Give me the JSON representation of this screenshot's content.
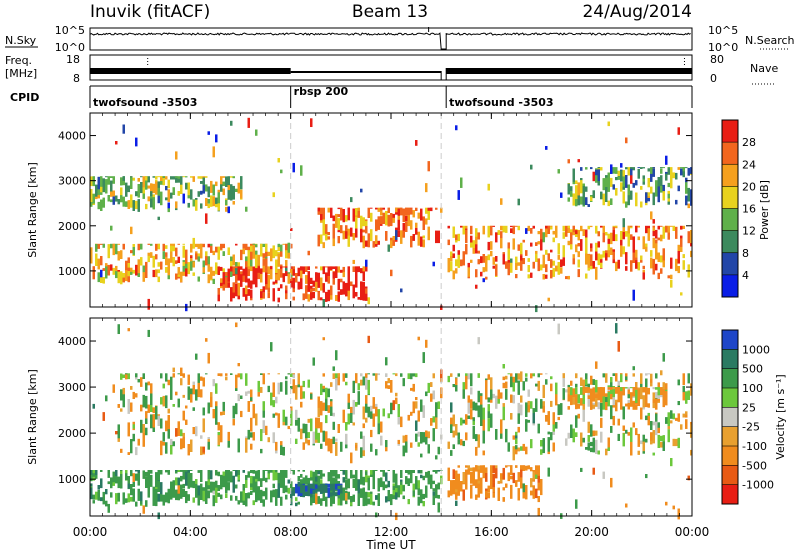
{
  "header": {
    "station": "Inuvik (fitACF)",
    "beam": "Beam 13",
    "date": "24/Aug/2014"
  },
  "summary_panels": {
    "nsky_label": "N.Sky",
    "nsky_ticks": [
      "10^5",
      "10^0"
    ],
    "nsearch_label": "N.Search",
    "nsearch_ticks": [
      "10^5",
      "10^0"
    ],
    "freq_label": "Freq.",
    "freq_unit": "[MHz]",
    "freq_ticks": [
      "18",
      "8"
    ],
    "nave_label": "Nave",
    "nave_ticks": [
      "80",
      "0"
    ],
    "cpid_label": "CPID",
    "cpid_segments": [
      {
        "name": "twofsound -3503",
        "start_h": 0,
        "end_h": 8
      },
      {
        "name": "rbsp 200",
        "start_h": 8,
        "end_h": 14.2
      },
      {
        "name": "twofsound -3503",
        "start_h": 14.2,
        "end_h": 24
      }
    ],
    "data_gap_h": [
      14.0,
      14.2
    ]
  },
  "time_axis": {
    "title": "Time UT",
    "ticks": [
      "00:00",
      "04:00",
      "08:00",
      "12:00",
      "16:00",
      "20:00",
      "00:00"
    ],
    "range_h": [
      0,
      24
    ]
  },
  "colors": {
    "power_scale": [
      "#0a1ee6",
      "#2246a8",
      "#3c8a5e",
      "#5fb04a",
      "#e8d21e",
      "#f5a01e",
      "#f2661e",
      "#e81e14"
    ],
    "velocity_scale": [
      "#1e46c8",
      "#2a7a62",
      "#3c9a4a",
      "#6cc83c",
      "#c8c8c2",
      "#e8a030",
      "#f08c1e",
      "#e85a14",
      "#e81e14"
    ]
  },
  "chart_data": [
    {
      "type": "heatmap",
      "title": "Power",
      "xlabel": "Time UT",
      "ylabel": "Slant Range [km]",
      "xlim_hours": [
        0,
        24
      ],
      "ylim_km": [
        200,
        4500
      ],
      "y_ticks": [
        "4000",
        "3000",
        "2000",
        "1000"
      ],
      "colorbar": {
        "label": "Power [dB]",
        "ticks": [
          "28",
          "24",
          "20",
          "16",
          "12",
          "8",
          "4"
        ],
        "range": [
          0,
          30
        ]
      },
      "features": [
        {
          "t_start": 0,
          "t_end": 8,
          "range_km": [
            700,
            1600
          ],
          "power_db": 20
        },
        {
          "t_start": 5,
          "t_end": 11,
          "range_km": [
            300,
            1100
          ],
          "power_db": 28
        },
        {
          "t_start": 0,
          "t_end": 6,
          "range_km": [
            2300,
            3100
          ],
          "power_db": 14
        },
        {
          "t_start": 9,
          "t_end": 14,
          "range_km": [
            1500,
            2400
          ],
          "power_db": 24
        },
        {
          "t_start": 14.2,
          "t_end": 24,
          "range_km": [
            800,
            2000
          ],
          "power_db": 22
        },
        {
          "t_start": 19,
          "t_end": 24,
          "range_km": [
            2400,
            3300
          ],
          "power_db": 12
        }
      ]
    },
    {
      "type": "heatmap",
      "title": "Velocity",
      "xlabel": "Time UT",
      "ylabel": "Slant Range [km]",
      "xlim_hours": [
        0,
        24
      ],
      "ylim_km": [
        200,
        4500
      ],
      "y_ticks": [
        "4000",
        "3000",
        "2000",
        "1000"
      ],
      "colorbar": {
        "label": "Velocity [m s⁻¹]",
        "ticks": [
          "1000",
          "500",
          "100",
          "25",
          "-25",
          "-100",
          "-500",
          "-1000"
        ],
        "range": [
          -1000,
          1000
        ]
      },
      "features": [
        {
          "t_start": 0,
          "t_end": 14,
          "range_km": [
            400,
            1200
          ],
          "velocity_ms": 300
        },
        {
          "t_start": 8,
          "t_end": 10,
          "range_km": [
            600,
            900
          ],
          "velocity_ms": 900
        },
        {
          "t_start": 1,
          "t_end": 24,
          "range_km": [
            1500,
            3300
          ],
          "velocity_ms": 0
        },
        {
          "t_start": 14.2,
          "t_end": 18,
          "range_km": [
            500,
            1300
          ],
          "velocity_ms": -300
        },
        {
          "t_start": 19,
          "t_end": 23,
          "range_km": [
            2500,
            3000
          ],
          "velocity_ms": -150
        }
      ]
    }
  ]
}
